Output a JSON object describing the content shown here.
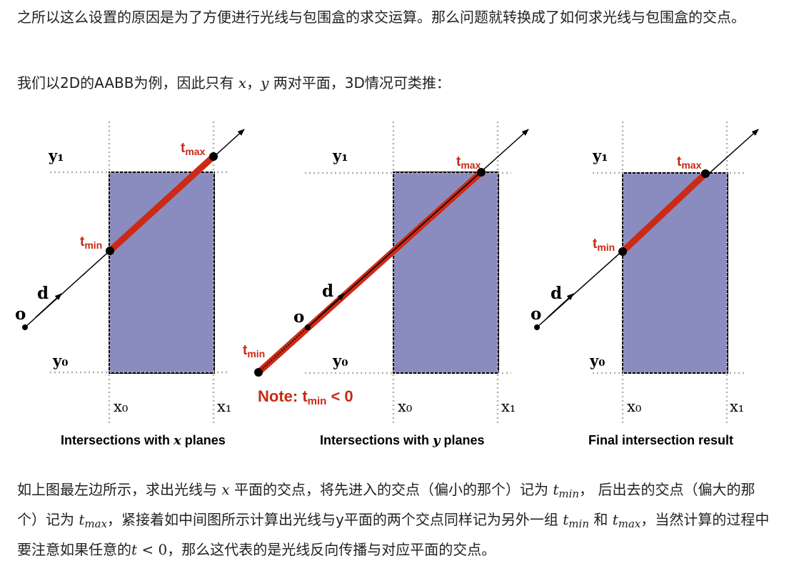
{
  "paragraph1": {
    "text": "之所以这么设置的原因是为了方便进行光线与包围盒的求交运算。那么问题就转换成了如何求光线与包围盒的交点。"
  },
  "paragraph2": {
    "before": "我们以2D的AABB为例，因此只有 ",
    "var_x": "x",
    "comma": "，",
    "var_y": "y",
    "after": " 两对平面，3D情况可类推："
  },
  "figure": {
    "panels": [
      {
        "caption_before": "Intersections with ",
        "caption_var": "x",
        "caption_after": " planes",
        "label_y1": "y₁",
        "label_y0": "y₀",
        "label_x0": "x₀",
        "label_x1": "x₁",
        "label_o": "o",
        "label_d": "d",
        "label_tmin": "tmin",
        "label_tmax": "tmax"
      },
      {
        "caption_before": "Intersections with ",
        "caption_var": "y",
        "caption_after": " planes",
        "label_y1": "y₁",
        "label_y0": "y₀",
        "label_x0": "x₀",
        "label_x1": "x₁",
        "label_o": "o",
        "label_d": "d",
        "label_tmin": "tmin",
        "label_tmax": "tmax",
        "note_prefix": "Note:  ",
        "note_t": "t",
        "note_sub": "min",
        "note_suffix": " < 0"
      },
      {
        "caption_before": "Final intersection result",
        "caption_var": "",
        "caption_after": "",
        "label_y1": "y₁",
        "label_y0": "y₀",
        "label_x0": "x₀",
        "label_x1": "x₁",
        "label_o": "o",
        "label_d": "d",
        "label_tmin": "tmin",
        "label_tmax": "tmax"
      }
    ],
    "colors": {
      "box_fill": "#8a8cc0",
      "ray_highlight": "#cc2a16",
      "label_red": "#c72a14",
      "plane_dots": "#b0b0b0"
    }
  },
  "paragraph3": {
    "s1": "如上图最左边所示，求出光线与 ",
    "var_x": "x",
    "s2": " 平面的交点，将先进入的交点（偏小的那个）记为 ",
    "t1": "t",
    "t1_sub": "min",
    "s3": "， 后出去的交点（偏大的那个）记为 ",
    "t2": "t",
    "t2_sub": "max",
    "s4": "，紧接着如中间图所示计算出光线与y平面的两个交点同样记为另外一组 ",
    "t3": "t",
    "t3_sub": "min",
    "s5": " 和 ",
    "t4": "t",
    "t4_sub": "max",
    "s6": "，当然计算的过程中要注意如果任意的",
    "t5": "t",
    "s7": " < 0",
    "s8": "，那么这代表的是光线反向传播与对应平面的交点。"
  }
}
